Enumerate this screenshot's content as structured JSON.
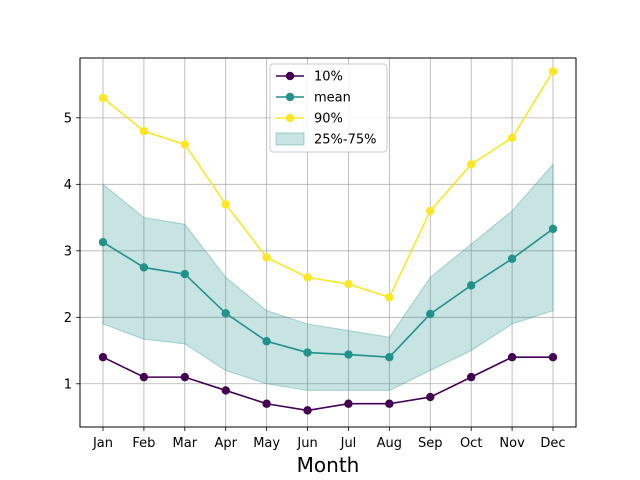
{
  "chart_data": {
    "type": "line",
    "title": "",
    "xlabel": "Month",
    "ylabel": "",
    "categories": [
      "Jan",
      "Feb",
      "Mar",
      "Apr",
      "May",
      "Jun",
      "Jul",
      "Aug",
      "Sep",
      "Oct",
      "Nov",
      "Dec"
    ],
    "yticks": [
      "1",
      "2",
      "3",
      "4",
      "5"
    ],
    "ylim": [
      0.35,
      5.9
    ],
    "grid": true,
    "legend_position": "top-center",
    "series": [
      {
        "name": "10%",
        "color": "#440154",
        "values": [
          1.4,
          1.1,
          1.1,
          0.9,
          0.7,
          0.6,
          0.7,
          0.7,
          0.8,
          1.1,
          1.4,
          1.4
        ]
      },
      {
        "name": "mean",
        "color": "#21918c",
        "values": [
          3.13,
          2.75,
          2.65,
          2.06,
          1.64,
          1.47,
          1.44,
          1.4,
          2.05,
          2.48,
          2.88,
          3.33
        ]
      },
      {
        "name": "90%",
        "color": "#fde725",
        "values": [
          5.3,
          4.8,
          4.6,
          3.7,
          2.9,
          2.6,
          2.5,
          2.3,
          3.6,
          4.3,
          4.7,
          5.7
        ]
      }
    ],
    "band": {
      "name": "25%-75%",
      "color": "#21918c",
      "lower": [
        1.9,
        1.67,
        1.6,
        1.2,
        1.0,
        0.9,
        0.9,
        0.9,
        1.2,
        1.5,
        1.9,
        2.1
      ],
      "upper": [
        4.0,
        3.5,
        3.4,
        2.6,
        2.1,
        1.9,
        1.8,
        1.7,
        2.6,
        3.1,
        3.6,
        4.3
      ]
    },
    "legend_order": [
      "10%",
      "mean",
      "90%",
      "25%-75%"
    ]
  }
}
